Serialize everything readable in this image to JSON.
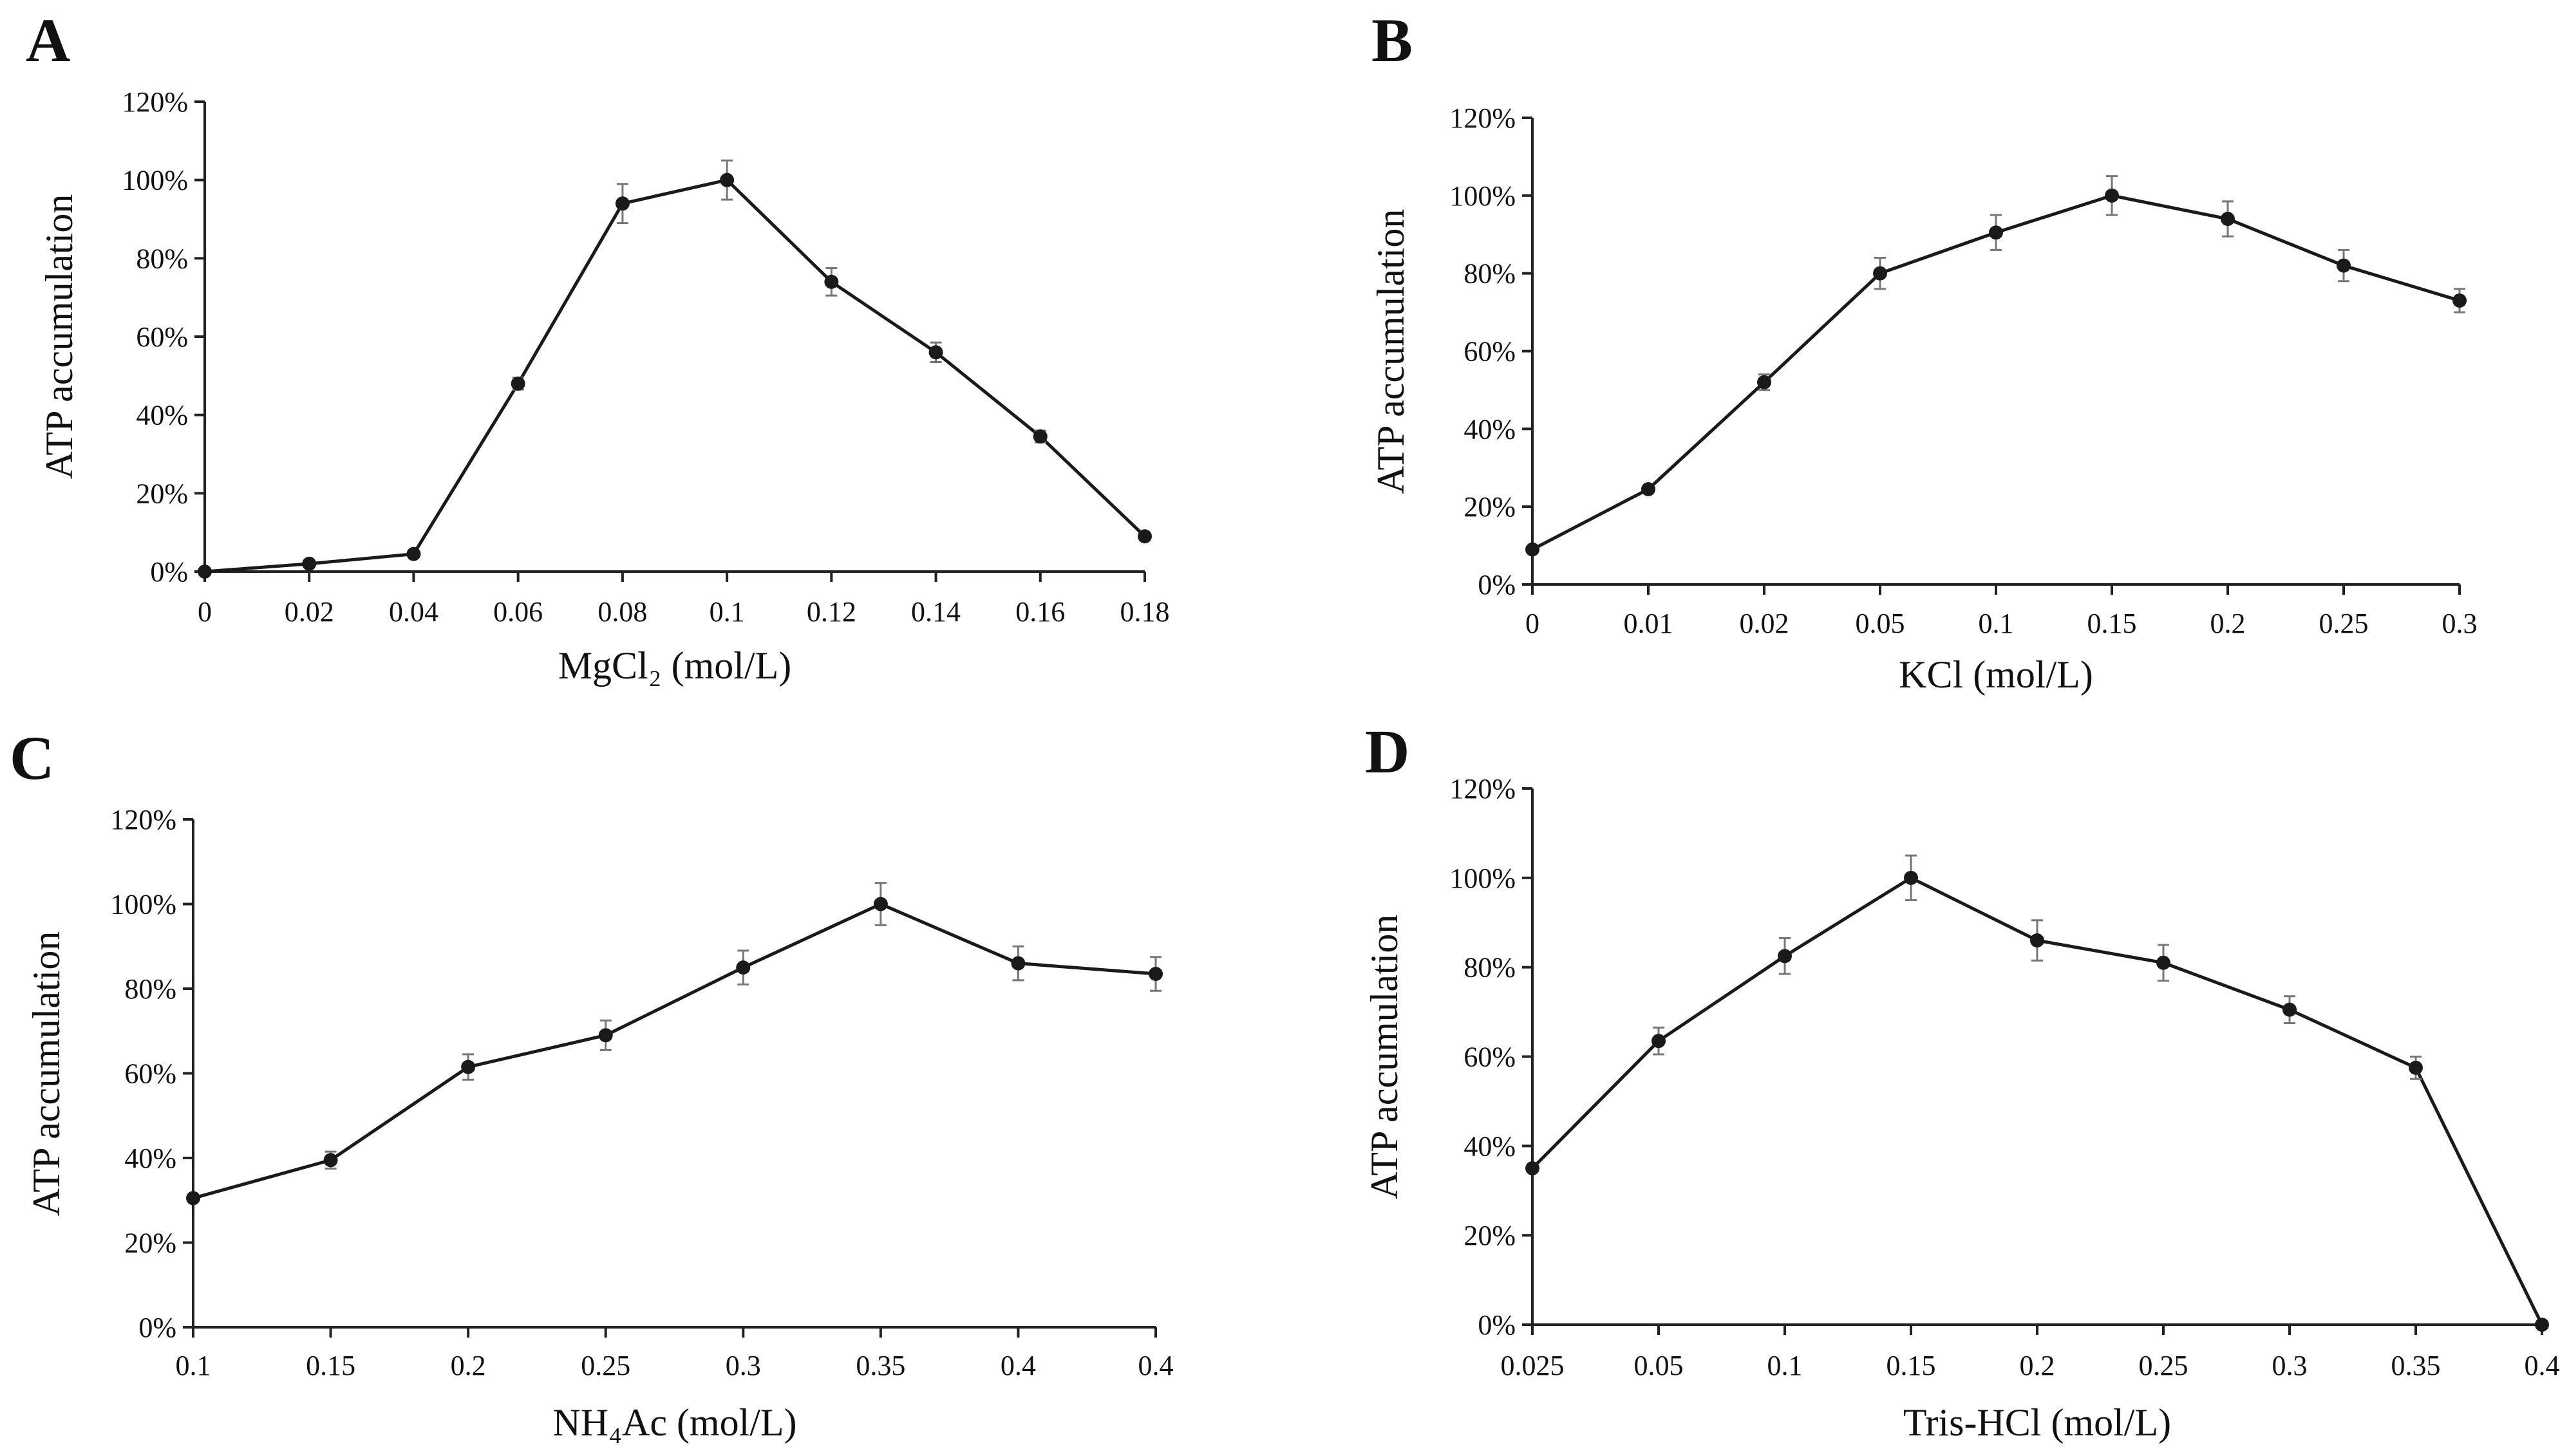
{
  "chart_data": [
    {
      "panel": "A",
      "type": "line",
      "xlabel": "MgCl₂ (mol/L)",
      "ylabel": "ATP accumulation",
      "categories": [
        "0",
        "0.02",
        "0.04",
        "0.06",
        "0.08",
        "0.1",
        "0.12",
        "0.14",
        "0.16",
        "0.18"
      ],
      "values": [
        0,
        2,
        4.5,
        48,
        94,
        100,
        74,
        56,
        34.5,
        9
      ],
      "errors": [
        0,
        0,
        0,
        1.5,
        5,
        5,
        3.5,
        2.5,
        1.5,
        0
      ],
      "ylim": [
        0,
        120
      ],
      "yticks": [
        "0%",
        "20%",
        "40%",
        "60%",
        "80%",
        "100%",
        "120%"
      ]
    },
    {
      "panel": "B",
      "type": "line",
      "xlabel": "KCl (mol/L)",
      "ylabel": "ATP accumulation",
      "categories": [
        "0",
        "0.01",
        "0.02",
        "0.05",
        "0.1",
        "0.15",
        "0.2",
        "0.25",
        "0.3"
      ],
      "values": [
        9,
        24.5,
        52,
        80,
        90.5,
        100,
        94,
        82,
        73
      ],
      "errors": [
        0,
        0,
        2,
        4,
        4.5,
        5,
        4.5,
        4,
        3
      ],
      "ylim": [
        0,
        120
      ],
      "yticks": [
        "0%",
        "20%",
        "40%",
        "60%",
        "80%",
        "100%",
        "120%"
      ]
    },
    {
      "panel": "C",
      "type": "line",
      "xlabel": "NH₄Ac (mol/L)",
      "ylabel": "ATP accumulation",
      "categories": [
        "0.1",
        "0.15",
        "0.2",
        "0.25",
        "0.3",
        "0.35",
        "0.4",
        "0.4"
      ],
      "values": [
        30.5,
        39.5,
        61.5,
        69,
        85,
        100,
        86,
        83.5
      ],
      "errors": [
        0,
        2,
        3,
        3.5,
        4,
        5,
        4,
        4
      ],
      "ylim": [
        0,
        120
      ],
      "yticks": [
        "0%",
        "20%",
        "40%",
        "60%",
        "80%",
        "100%",
        "120%"
      ]
    },
    {
      "panel": "D",
      "type": "line",
      "xlabel": "Tris-HCl (mol/L)",
      "ylabel": "ATP accumulation",
      "categories": [
        "0.025",
        "0.05",
        "0.1",
        "0.15",
        "0.2",
        "0.25",
        "0.3",
        "0.35",
        "0.4"
      ],
      "values": [
        35,
        63.5,
        82.5,
        100,
        86,
        81,
        70.5,
        57.5,
        0
      ],
      "errors": [
        0,
        3,
        4,
        5,
        4.5,
        4,
        3,
        2.5,
        0
      ],
      "ylim": [
        0,
        120
      ],
      "yticks": [
        "0%",
        "20%",
        "40%",
        "60%",
        "80%",
        "100%",
        "120%"
      ]
    }
  ],
  "style": {
    "line_color": "#1a1a1a",
    "axis_color": "#222222",
    "error_bar_color": "#777777"
  }
}
